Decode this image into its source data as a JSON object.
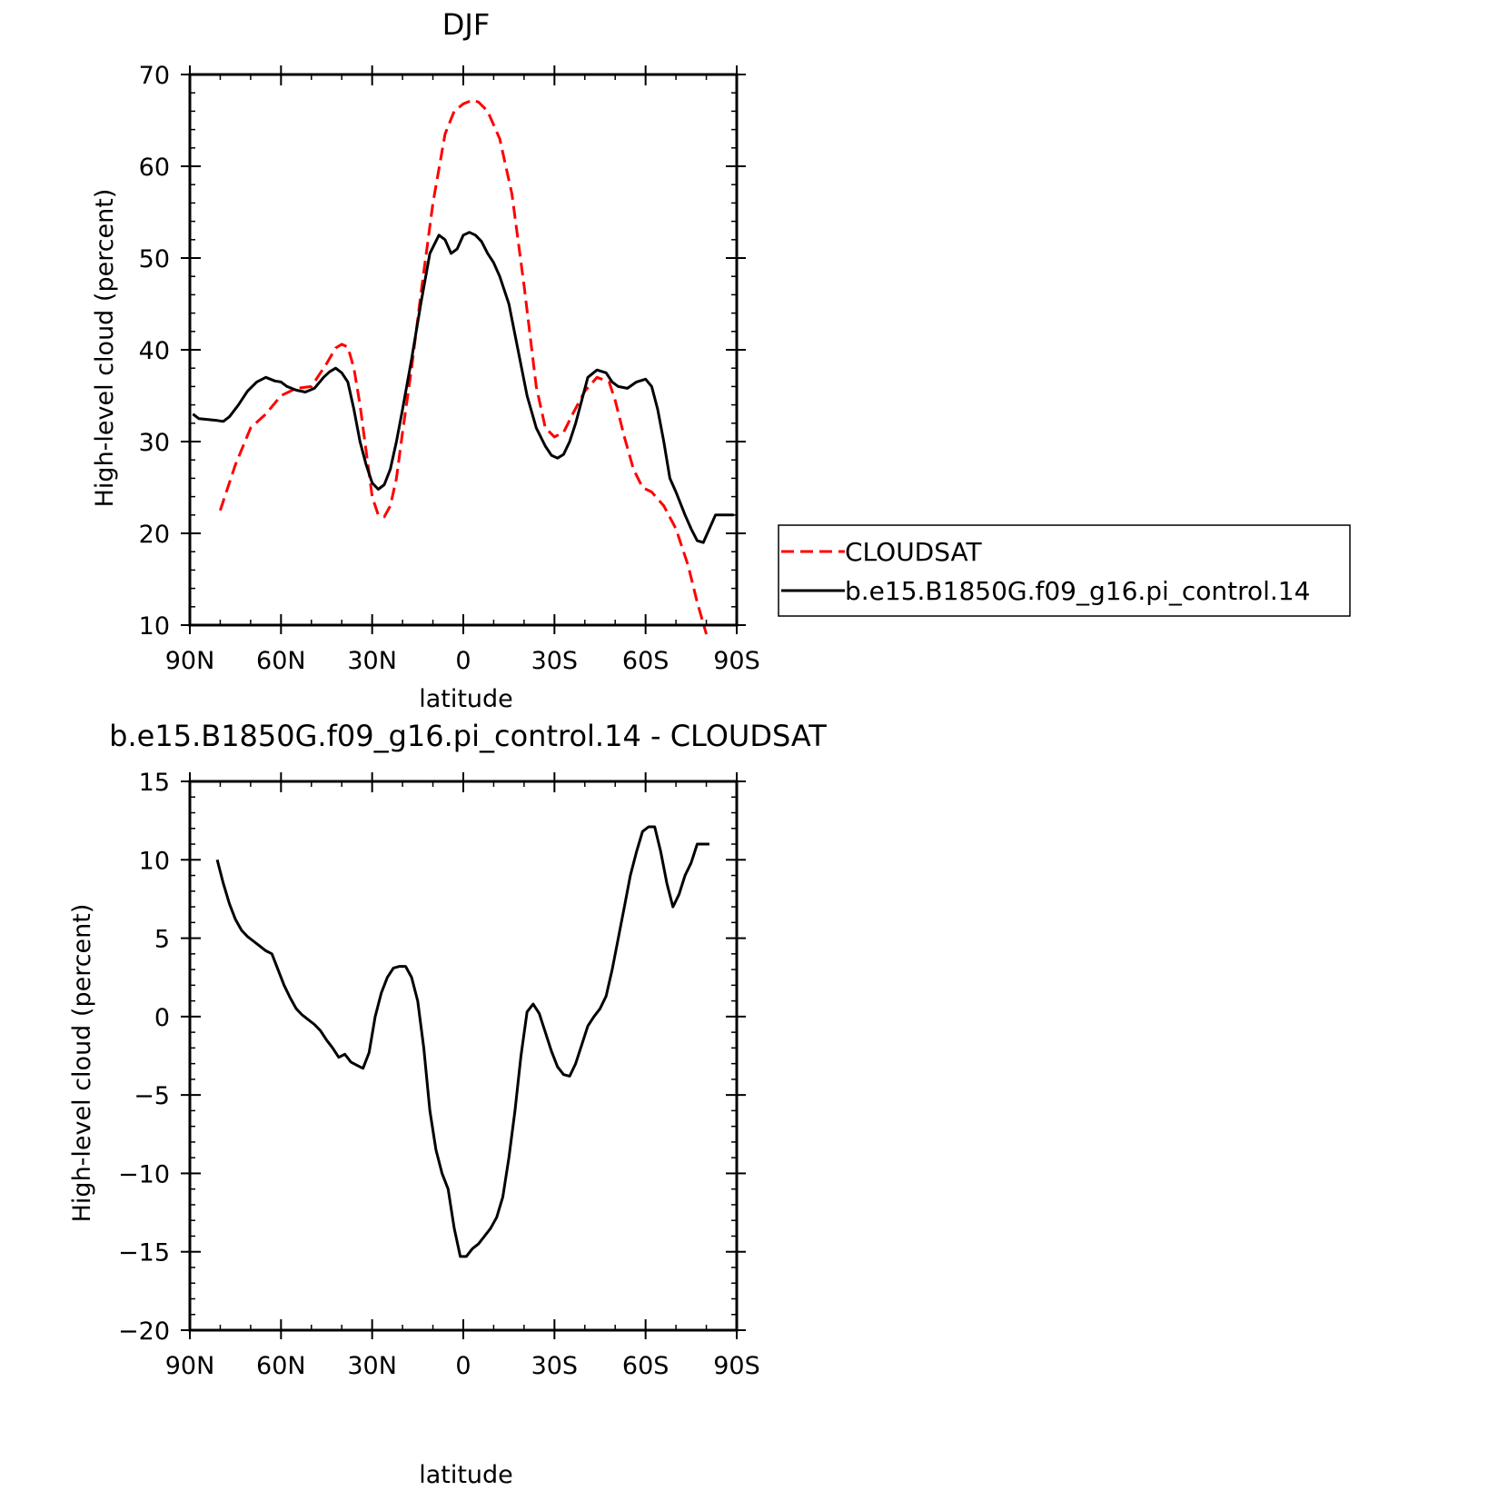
{
  "chart_data": [
    {
      "type": "line",
      "title": "DJF",
      "xlabel": "latitude",
      "ylabel": "High-level cloud (percent)",
      "xlim": [
        90,
        -90
      ],
      "ylim": [
        10,
        70
      ],
      "xticks": [
        90,
        60,
        30,
        0,
        -30,
        -60,
        -90
      ],
      "xtick_labels": [
        "90N",
        "60N",
        "30N",
        "0",
        "30S",
        "60S",
        "90S"
      ],
      "yticks": [
        10,
        20,
        30,
        40,
        50,
        60,
        70
      ],
      "ytick_labels": [
        "10",
        "20",
        "30",
        "40",
        "50",
        "60",
        "70"
      ],
      "legend": "right",
      "series": [
        {
          "name": "CLOUDSAT",
          "color": "#ff0000",
          "style": "dashed",
          "x": [
            80,
            75,
            70,
            65,
            60,
            55,
            50,
            45,
            42,
            40,
            38,
            36,
            34,
            32,
            30,
            28,
            26,
            24,
            22,
            20,
            17,
            14,
            10,
            6,
            3,
            0,
            -3,
            -5,
            -8,
            -12,
            -16,
            -20,
            -24,
            -27,
            -30,
            -33,
            -36,
            -40,
            -44,
            -48,
            -50,
            -53,
            -56,
            -59,
            -62,
            -66,
            -70,
            -74,
            -77,
            -80
          ],
          "y": [
            22.5,
            27.5,
            31.5,
            33.0,
            35.0,
            35.8,
            36.0,
            38.5,
            40.2,
            40.6,
            40.3,
            38.0,
            34.0,
            29.0,
            24.0,
            22.0,
            21.8,
            23.0,
            26.0,
            31.0,
            38.0,
            46.0,
            56.0,
            63.5,
            66.0,
            66.8,
            67.2,
            67.0,
            66.0,
            63.0,
            57.0,
            47.0,
            36.0,
            31.5,
            30.5,
            31.0,
            33.0,
            35.5,
            37.0,
            36.5,
            34.5,
            30.5,
            27.0,
            25.0,
            24.5,
            23.0,
            20.5,
            16.5,
            12.5,
            9.0
          ]
        },
        {
          "name": "b.e15.B1850G.f09_g16.pi_control.14",
          "color": "#000000",
          "style": "solid",
          "x": [
            89,
            87,
            84,
            81,
            79,
            77,
            74,
            71,
            68,
            65,
            62,
            60,
            58,
            55,
            52,
            49,
            46,
            44,
            42,
            40,
            38,
            36,
            34,
            32,
            30,
            28,
            26,
            24,
            22,
            20,
            17,
            14,
            11,
            8,
            6,
            4,
            2,
            0,
            -2,
            -4,
            -6,
            -8,
            -10,
            -12,
            -15,
            -18,
            -21,
            -24,
            -27,
            -29,
            -31,
            -33,
            -35,
            -37,
            -39,
            -41,
            -44,
            -47,
            -49,
            -51,
            -54,
            -57,
            -60,
            -62,
            -64,
            -66,
            -68,
            -70,
            -73,
            -75,
            -77,
            -79,
            -81,
            -83,
            -85,
            -87,
            -89
          ],
          "y": [
            33.0,
            32.5,
            32.4,
            32.3,
            32.2,
            32.7,
            34.0,
            35.5,
            36.5,
            37.0,
            36.6,
            36.5,
            36.0,
            35.6,
            35.4,
            35.8,
            37.0,
            37.6,
            38.0,
            37.5,
            36.5,
            33.5,
            30.0,
            27.5,
            25.5,
            24.8,
            25.3,
            27.0,
            30.0,
            33.5,
            39.0,
            45.0,
            50.5,
            52.5,
            52.0,
            50.5,
            51.0,
            52.5,
            52.8,
            52.5,
            51.8,
            50.5,
            49.5,
            48.0,
            45.0,
            40.0,
            35.0,
            31.5,
            29.5,
            28.5,
            28.2,
            28.6,
            30.0,
            32.0,
            34.5,
            37.0,
            37.8,
            37.5,
            36.5,
            36.0,
            35.8,
            36.5,
            36.8,
            36.0,
            33.5,
            30.0,
            26.0,
            24.5,
            22.0,
            20.5,
            19.2,
            19.0,
            20.5,
            22.0,
            22.0,
            22.0,
            22.0
          ]
        }
      ]
    },
    {
      "type": "line",
      "title": "b.e15.B1850G.f09_g16.pi_control.14 - CLOUDSAT",
      "xlabel": "latitude",
      "ylabel": "High-level cloud (percent)",
      "xlim": [
        90,
        -90
      ],
      "ylim": [
        -20,
        15
      ],
      "xticks": [
        90,
        60,
        30,
        0,
        -30,
        -60,
        -90
      ],
      "xtick_labels": [
        "90N",
        "60N",
        "30N",
        "0",
        "30S",
        "60S",
        "90S"
      ],
      "yticks": [
        -20,
        -15,
        -10,
        -5,
        0,
        5,
        10,
        15
      ],
      "ytick_labels": [
        "−20",
        "−15",
        "−10",
        "−5",
        "0",
        "5",
        "10",
        "15"
      ],
      "series": [
        {
          "color": "#000000",
          "style": "solid",
          "x": [
            81,
            79,
            77,
            75,
            73,
            71,
            69,
            67,
            65,
            63,
            61,
            59,
            57,
            55,
            53,
            51,
            49,
            47,
            45,
            43,
            41,
            39,
            37,
            35,
            33,
            31,
            29,
            27,
            25,
            23,
            21,
            19,
            17,
            15,
            13,
            11,
            9,
            7,
            5,
            3,
            1,
            -1,
            -3,
            -5,
            -7,
            -9,
            -11,
            -13,
            -15,
            -17,
            -19,
            -21,
            -23,
            -25,
            -27,
            -29,
            -31,
            -33,
            -35,
            -37,
            -39,
            -41,
            -43,
            -45,
            -47,
            -49,
            -51,
            -53,
            -55,
            -57,
            -59,
            -61,
            -63,
            -65,
            -67,
            -69,
            -71,
            -73,
            -75,
            -77,
            -79,
            -81
          ],
          "y": [
            10.0,
            8.5,
            7.2,
            6.2,
            5.5,
            5.1,
            4.8,
            4.5,
            4.2,
            4.0,
            3.0,
            2.0,
            1.2,
            0.5,
            0.1,
            -0.2,
            -0.5,
            -0.9,
            -1.5,
            -2.0,
            -2.6,
            -2.4,
            -2.9,
            -3.1,
            -3.3,
            -2.3,
            0.0,
            1.5,
            2.5,
            3.1,
            3.2,
            3.2,
            2.5,
            1.0,
            -2.0,
            -6.0,
            -8.5,
            -10.0,
            -11.0,
            -13.5,
            -15.3,
            -15.3,
            -14.8,
            -14.5,
            -14.0,
            -13.5,
            -12.8,
            -11.5,
            -9.0,
            -6.0,
            -2.5,
            0.3,
            0.8,
            0.2,
            -1.0,
            -2.2,
            -3.2,
            -3.7,
            -3.8,
            -3.0,
            -1.8,
            -0.6,
            0.0,
            0.5,
            1.3,
            3.0,
            5.0,
            7.0,
            9.0,
            10.5,
            11.8,
            12.1,
            12.1,
            10.5,
            8.5,
            7.0,
            7.8,
            9.0,
            9.8,
            11.0,
            11.0,
            11.0
          ]
        }
      ]
    }
  ]
}
